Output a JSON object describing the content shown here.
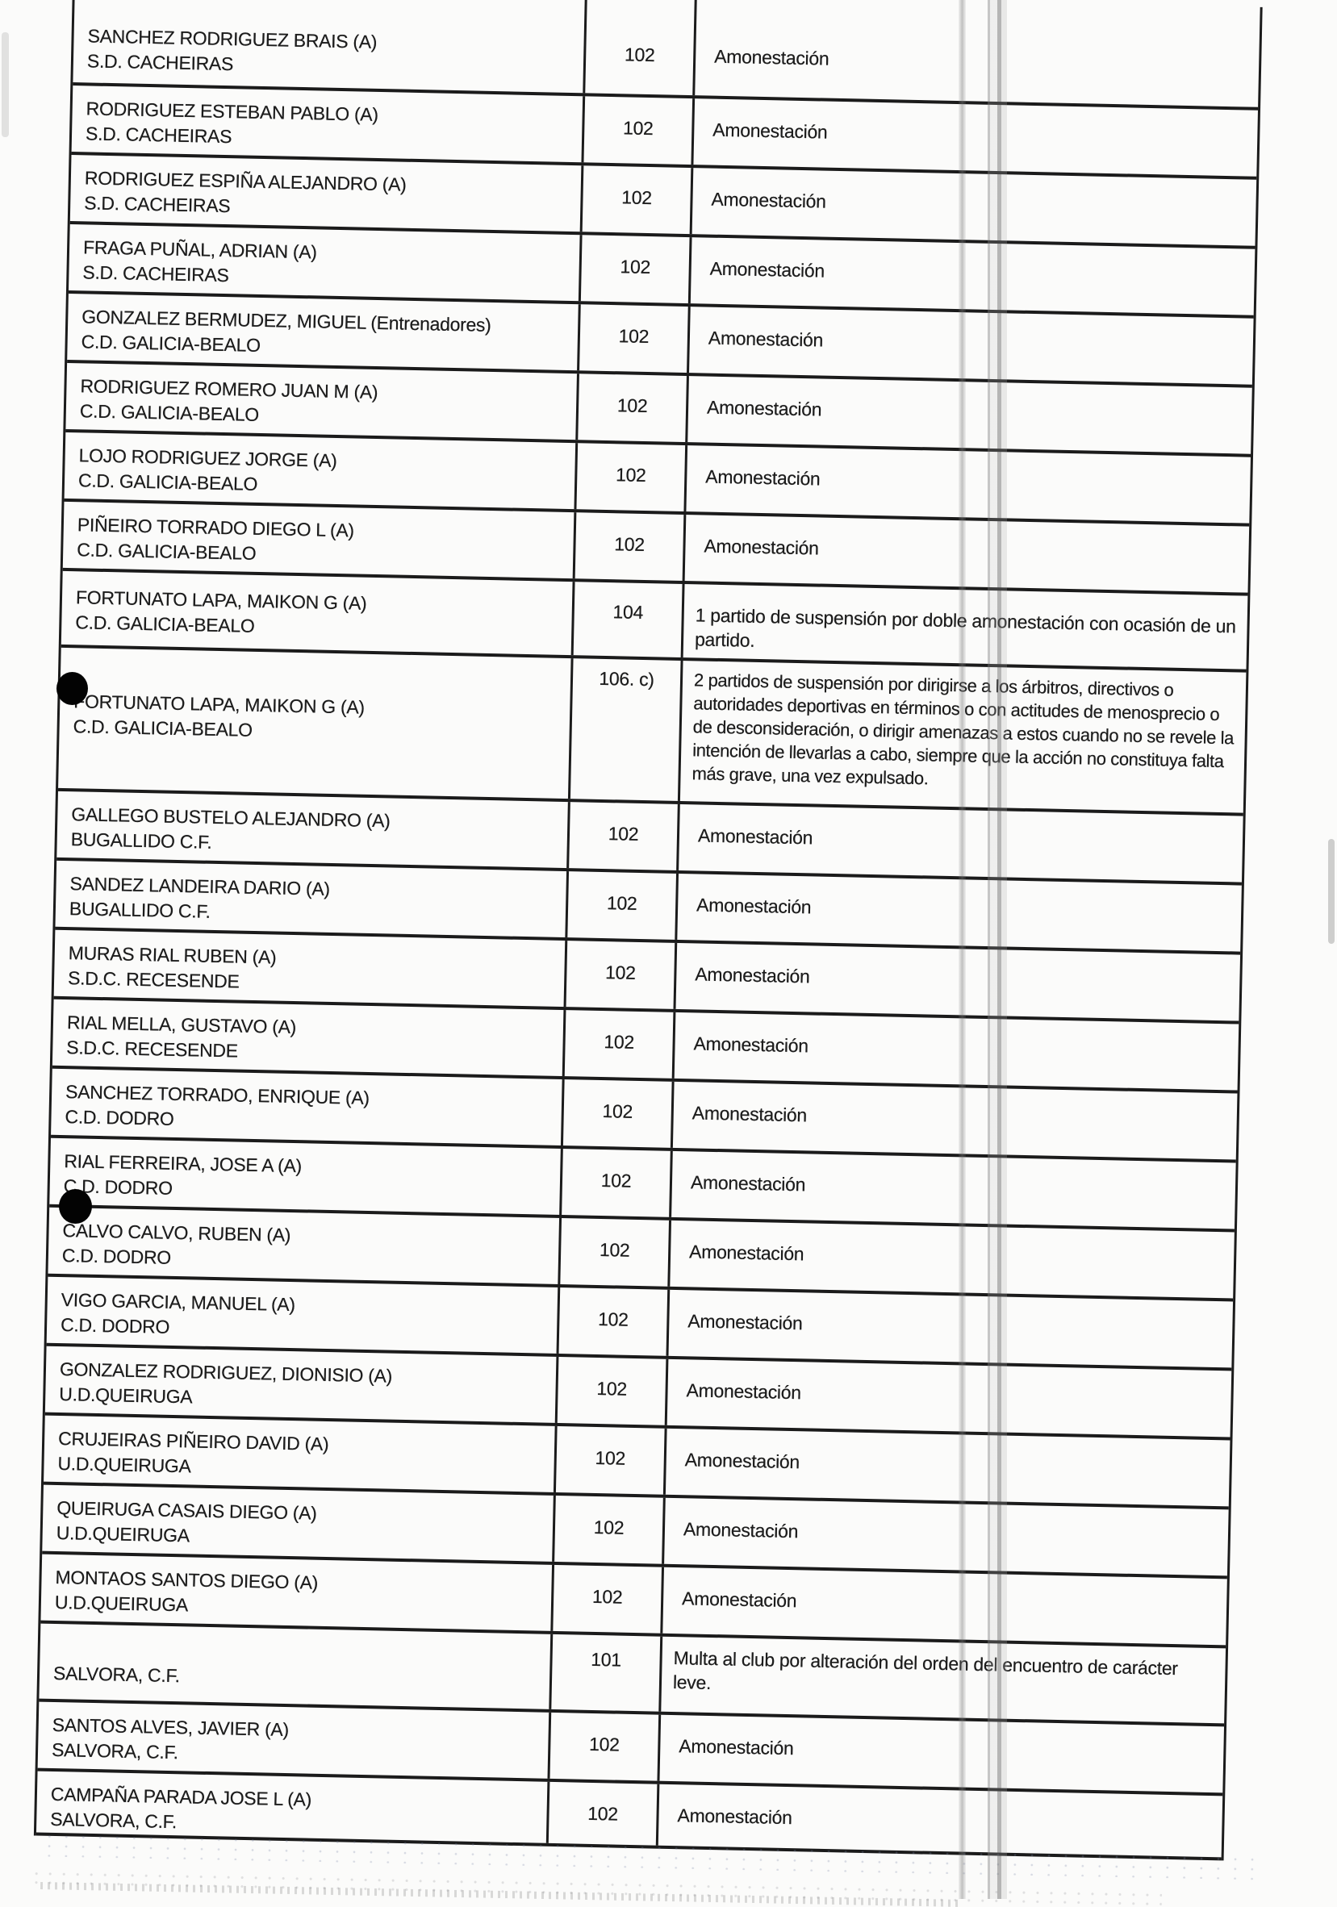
{
  "document": {
    "kind": "scanned disciplinary sanctions table",
    "language": "es",
    "colors": {
      "ink": "#1c1c1c",
      "paper": "#fbfbfa",
      "redaction": "#030303"
    }
  },
  "table": {
    "columns": [
      "jugador_y_club",
      "articulo",
      "sancion"
    ],
    "rows": [
      {
        "variant": "first",
        "name": "SANCHEZ RODRIGUEZ BRAIS (A)",
        "club": "S.D. CACHEIRAS",
        "article": "102",
        "sanction": "Amonestación"
      },
      {
        "variant": "std",
        "name": "RODRIGUEZ ESTEBAN PABLO (A)",
        "club": "S.D. CACHEIRAS",
        "article": "102",
        "sanction": "Amonestación"
      },
      {
        "variant": "std",
        "name": "RODRIGUEZ ESPIÑA ALEJANDRO (A)",
        "club": "S.D. CACHEIRAS",
        "article": "102",
        "sanction": "Amonestación"
      },
      {
        "variant": "std",
        "name": "FRAGA PUÑAL, ADRIAN (A)",
        "club": "S.D. CACHEIRAS",
        "article": "102",
        "sanction": "Amonestación"
      },
      {
        "variant": "std",
        "name": "GONZALEZ BERMUDEZ, MIGUEL (Entrenadores)",
        "club": "C.D. GALICIA-BEALO",
        "article": "102",
        "sanction": "Amonestación"
      },
      {
        "variant": "std",
        "name": "RODRIGUEZ ROMERO JUAN M (A)",
        "club": "C.D. GALICIA-BEALO",
        "article": "102",
        "sanction": "Amonestación"
      },
      {
        "variant": "std",
        "name": "LOJO RODRIGUEZ JORGE (A)",
        "club": "C.D. GALICIA-BEALO",
        "article": "102",
        "sanction": "Amonestación"
      },
      {
        "variant": "std",
        "name": "PIÑEIRO TORRADO DIEGO L (A)",
        "club": "C.D. GALICIA-BEALO",
        "article": "102",
        "sanction": "Amonestación"
      },
      {
        "variant": "susp",
        "name": "FORTUNATO LAPA, MAIKON G (A)",
        "club": "C.D. GALICIA-BEALO",
        "article": "104",
        "sanction": "1 partido de suspensión por doble amonestación con ocasión de un partido."
      },
      {
        "variant": "long",
        "name": "FORTUNATO LAPA, MAIKON G (A)",
        "club": "C.D. GALICIA-BEALO",
        "article": "106. c)",
        "sanction": "2 partidos de suspensión por dirigirse a los árbitros, directivos o autoridades deportivas en términos o con actitudes de menosprecio o de desconsideración, o dirigir amenazas a estos cuando no se revele la intención de llevarlas a cabo, siempre que la acción no constituya falta más grave, una vez expulsado."
      },
      {
        "variant": "std",
        "name": "GALLEGO BUSTELO ALEJANDRO (A)",
        "club": "BUGALLIDO C.F.",
        "article": "102",
        "sanction": "Amonestación"
      },
      {
        "variant": "std",
        "name": "SANDEZ LANDEIRA DARIO (A)",
        "club": "BUGALLIDO C.F.",
        "article": "102",
        "sanction": "Amonestación"
      },
      {
        "variant": "std",
        "name": "MURAS RIAL RUBEN (A)",
        "club": "S.D.C. RECESENDE",
        "article": "102",
        "sanction": "Amonestación"
      },
      {
        "variant": "std",
        "name": "RIAL MELLA, GUSTAVO (A)",
        "club": "S.D.C. RECESENDE",
        "article": "102",
        "sanction": "Amonestación"
      },
      {
        "variant": "std",
        "name": "SANCHEZ TORRADO, ENRIQUE (A)",
        "club": "C.D. DODRO",
        "article": "102",
        "sanction": "Amonestación"
      },
      {
        "variant": "std",
        "name": "RIAL FERREIRA, JOSE A (A)",
        "club": "C.D. DODRO",
        "article": "102",
        "sanction": "Amonestación"
      },
      {
        "variant": "std",
        "name": "CALVO CALVO, RUBEN (A)",
        "club": "C.D. DODRO",
        "article": "102",
        "sanction": "Amonestación"
      },
      {
        "variant": "std",
        "name": "VIGO GARCIA, MANUEL (A)",
        "club": "C.D. DODRO",
        "article": "102",
        "sanction": "Amonestación"
      },
      {
        "variant": "std",
        "name": "GONZALEZ RODRIGUEZ, DIONISIO (A)",
        "club": "U.D.QUEIRUGA",
        "article": "102",
        "sanction": "Amonestación"
      },
      {
        "variant": "std",
        "name": "CRUJEIRAS PIÑEIRO DAVID (A)",
        "club": "U.D.QUEIRUGA",
        "article": "102",
        "sanction": "Amonestación"
      },
      {
        "variant": "std",
        "name": "QUEIRUGA CASAIS DIEGO (A)",
        "club": "U.D.QUEIRUGA",
        "article": "102",
        "sanction": "Amonestación"
      },
      {
        "variant": "std",
        "name": "MONTAOS SANTOS DIEGO (A)",
        "club": "U.D.QUEIRUGA",
        "article": "102",
        "sanction": "Amonestación"
      },
      {
        "variant": "club",
        "name": "",
        "club": "SALVORA, C.F.",
        "article": "101",
        "sanction": "Multa al club por alteración del orden del encuentro de carácter leve."
      },
      {
        "variant": "std",
        "name": "SANTOS ALVES, JAVIER (A)",
        "club": "SALVORA, C.F.",
        "article": "102",
        "sanction": "Amonestación"
      },
      {
        "variant": "last-std",
        "name": "CAMPAÑA PARADA JOSE L (A)",
        "club": "SALVORA, C.F.",
        "article": "102",
        "sanction": "Amonestación"
      }
    ]
  }
}
